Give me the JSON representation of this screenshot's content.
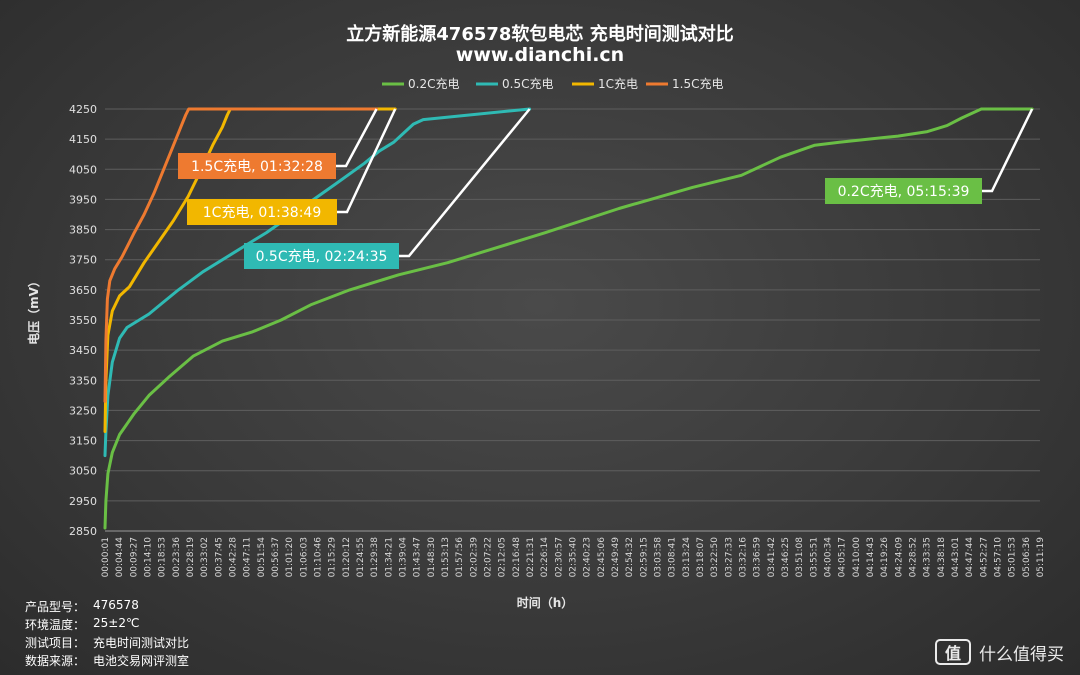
{
  "chart_data": {
    "type": "line",
    "title": "立方新能源476578软包电芯 充电时间测试对比",
    "subtitle": "www.dianchi.cn",
    "xlabel": "时间（h）",
    "ylabel": "电压（mV）",
    "ylim": [
      2850,
      4250
    ],
    "yticks": [
      4250,
      4150,
      4050,
      3950,
      3850,
      3750,
      3650,
      3550,
      3450,
      3350,
      3250,
      3150,
      3050,
      2950,
      2850
    ],
    "xlim_seconds": [
      1,
      19100
    ],
    "xtick_labels": [
      "00:00:01",
      "00:04:44",
      "00:09:27",
      "00:14:10",
      "00:18:53",
      "00:23:36",
      "00:28:19",
      "00:33:02",
      "00:37:45",
      "00:42:28",
      "00:47:11",
      "00:51:54",
      "00:56:37",
      "01:01:20",
      "01:06:03",
      "01:10:46",
      "01:15:29",
      "01:20:12",
      "01:24:55",
      "01:29:38",
      "01:34:21",
      "01:39:04",
      "01:43:47",
      "01:48:30",
      "01:53:13",
      "01:57:56",
      "02:02:39",
      "02:07:22",
      "02:12:05",
      "02:16:48",
      "02:21:31",
      "02:26:14",
      "02:30:57",
      "02:35:40",
      "02:40:23",
      "02:45:06",
      "02:49:49",
      "02:54:32",
      "02:59:15",
      "03:03:58",
      "03:08:41",
      "03:13:24",
      "03:18:07",
      "03:22:50",
      "03:27:33",
      "03:32:16",
      "03:36:59",
      "03:41:42",
      "03:46:25",
      "03:51:08",
      "03:55:51",
      "04:00:34",
      "04:05:17",
      "04:10:00",
      "04:14:43",
      "04:19:26",
      "04:24:09",
      "04:28:52",
      "04:33:35",
      "04:38:18",
      "04:43:01",
      "04:47:44",
      "04:52:27",
      "04:57:10",
      "05:01:53",
      "05:06:36",
      "05:11:19"
    ],
    "legend_position": "top",
    "grid": true,
    "series": [
      {
        "name": "0.2C充电",
        "color": "#6abf45",
        "x_seconds": [
          1,
          20,
          60,
          150,
          300,
          600,
          900,
          1300,
          1800,
          2400,
          3000,
          3600,
          4200,
          5000,
          6000,
          7000,
          8000,
          9000,
          10500,
          12000,
          13000,
          13800,
          14500,
          15000,
          15600,
          16200,
          16800,
          17200,
          17500,
          17900,
          18939
        ],
        "values": [
          2860,
          2950,
          3040,
          3110,
          3170,
          3240,
          3300,
          3360,
          3430,
          3480,
          3510,
          3550,
          3600,
          3650,
          3700,
          3740,
          3790,
          3840,
          3920,
          3990,
          4030,
          4090,
          4130,
          4140,
          4150,
          4160,
          4175,
          4195,
          4220,
          4250,
          4250
        ]
      },
      {
        "name": "0.5C充电",
        "color": "#2fbab4",
        "x_seconds": [
          1,
          20,
          60,
          150,
          300,
          450,
          700,
          900,
          1200,
          1500,
          2000,
          2600,
          3300,
          4000,
          4700,
          5300,
          5600,
          5900,
          6100,
          6300,
          6500,
          8675
        ],
        "values": [
          3100,
          3180,
          3300,
          3410,
          3490,
          3525,
          3550,
          3570,
          3610,
          3650,
          3710,
          3770,
          3840,
          3920,
          4000,
          4070,
          4110,
          4140,
          4170,
          4200,
          4215,
          4250
        ]
      },
      {
        "name": "1C充电",
        "color": "#f2b700",
        "x_seconds": [
          1,
          20,
          60,
          150,
          300,
          500,
          800,
          1100,
          1400,
          1700,
          2000,
          2200,
          2400,
          2500,
          2560,
          5929
        ],
        "values": [
          3180,
          3350,
          3500,
          3580,
          3630,
          3660,
          3740,
          3810,
          3880,
          3960,
          4060,
          4130,
          4190,
          4230,
          4250,
          4250
        ]
      },
      {
        "name": "1.5C充电",
        "color": "#ee7a30",
        "x_seconds": [
          1,
          20,
          50,
          100,
          200,
          350,
          600,
          800,
          1000,
          1200,
          1400,
          1550,
          1650,
          1710,
          5548
        ],
        "values": [
          3280,
          3480,
          3620,
          3680,
          3720,
          3760,
          3840,
          3900,
          3970,
          4050,
          4130,
          4190,
          4230,
          4250,
          4250
        ]
      }
    ],
    "annotations": [
      {
        "series": "1.5C充电",
        "text": "1.5C充电, 01:32:28",
        "bg": "#ee7a30"
      },
      {
        "series": "1C充电",
        "text": "1C充电, 01:38:49",
        "bg": "#f2b700"
      },
      {
        "series": "0.5C充电",
        "text": "0.5C充电, 02:24:35",
        "bg": "#2fbab4"
      },
      {
        "series": "0.2C充电",
        "text": "0.2C充电, 05:15:39",
        "bg": "#6abf45"
      }
    ]
  },
  "info": {
    "model_label": "产品型号：",
    "model_value": "476578",
    "temp_label": "环境温度：",
    "temp_value": "25±2℃",
    "item_label": "测试项目：",
    "item_value": "充电时间测试对比",
    "source_label": "数据来源：",
    "source_value": "电池交易网评测室"
  },
  "watermark": {
    "logo": "值",
    "text": "什么值得买"
  }
}
